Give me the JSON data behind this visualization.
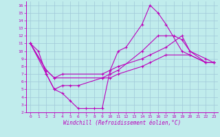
{
  "xlabel": "Windchill (Refroidissement éolien,°C)",
  "bg_color": "#c0ecec",
  "grid_color": "#a0c8d8",
  "line_color": "#bb00bb",
  "xlim": [
    -0.5,
    23.5
  ],
  "ylim": [
    2,
    16.5
  ],
  "xticks": [
    0,
    1,
    2,
    3,
    4,
    5,
    6,
    7,
    8,
    9,
    10,
    11,
    12,
    13,
    14,
    15,
    16,
    17,
    18,
    19,
    20,
    21,
    22,
    23
  ],
  "yticks": [
    2,
    3,
    4,
    5,
    6,
    7,
    8,
    9,
    10,
    11,
    12,
    13,
    14,
    15,
    16
  ],
  "lines": [
    {
      "x": [
        0,
        1,
        2,
        3,
        4,
        5,
        6,
        7,
        8,
        9,
        10,
        11,
        12,
        14,
        15,
        16,
        17,
        19,
        20,
        22,
        23
      ],
      "y": [
        11,
        10,
        7,
        5,
        4.5,
        3.5,
        2.5,
        2.5,
        2.5,
        2.5,
        7.5,
        10,
        10.5,
        13.5,
        16,
        15,
        13.5,
        10,
        9.5,
        8.5,
        8.5
      ]
    },
    {
      "x": [
        0,
        2,
        3,
        4,
        5,
        6,
        9,
        10,
        11,
        14,
        16,
        17,
        18,
        19,
        20,
        22,
        23
      ],
      "y": [
        11,
        7,
        5,
        5.5,
        5.5,
        5.5,
        6.5,
        7,
        7.5,
        10,
        12,
        12,
        12,
        11.5,
        10,
        8.5,
        8.5
      ]
    },
    {
      "x": [
        0,
        2,
        3,
        4,
        9,
        10,
        11,
        14,
        15,
        17,
        19,
        20,
        22,
        23
      ],
      "y": [
        11,
        7.5,
        6.5,
        7,
        7,
        7.5,
        8,
        9,
        9.5,
        10.5,
        12,
        10,
        9,
        8.5
      ]
    },
    {
      "x": [
        0,
        2,
        3,
        9,
        10,
        11,
        14,
        15,
        17,
        20,
        22,
        23
      ],
      "y": [
        11,
        7.5,
        6.5,
        6.5,
        6.5,
        7,
        8,
        8.5,
        9.5,
        9.5,
        8.5,
        8.5
      ]
    }
  ]
}
